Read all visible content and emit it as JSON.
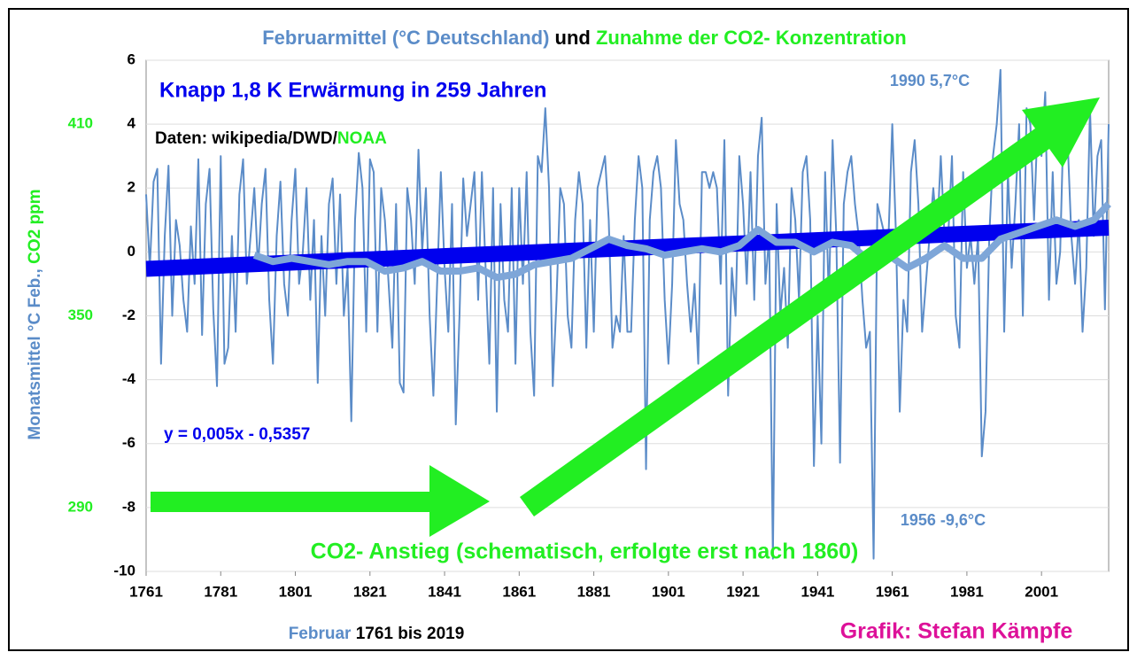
{
  "chart_data": {
    "type": "line",
    "title_parts": [
      {
        "text": "Februarmittel (°C Deutschland)",
        "color": "#5b8cc8"
      },
      {
        "text": " und ",
        "color": "#000000"
      },
      {
        "text": "Zunahme der CO2- Konzentration",
        "color": "#22ee22"
      }
    ],
    "ylabel_parts": [
      {
        "text": "Monatsmittel °C Feb., ",
        "color": "#5b8cc8"
      },
      {
        "text": "CO2 ppm",
        "color": "#22ee22"
      }
    ],
    "xlabel_parts": [
      {
        "text": "Februar ",
        "color": "#5b8cc8"
      },
      {
        "text": "1761 bis 2019",
        "color": "#000000"
      }
    ],
    "credit": "Grafik: Stefan Kämpfe",
    "annotations": {
      "headline": "Knapp 1,8 K Erwärmung in 259 Jahren",
      "source": "Daten: wikipedia/DWD/",
      "source_noaa": "NOAA",
      "equation": "y = 0,005x - 0,5357",
      "max": "1990 5,7°C",
      "min": "1956 -9,6°C",
      "co2": "CO2- Anstieg (schematisch, erfolgte erst nach 1860)"
    },
    "x": [
      1761,
      1762,
      1763,
      1764,
      1765,
      1766,
      1767,
      1768,
      1769,
      1770,
      1771,
      1772,
      1773,
      1774,
      1775,
      1776,
      1777,
      1778,
      1779,
      1780,
      1781,
      1782,
      1783,
      1784,
      1785,
      1786,
      1787,
      1788,
      1789,
      1790,
      1791,
      1792,
      1793,
      1794,
      1795,
      1796,
      1797,
      1798,
      1799,
      1800,
      1801,
      1802,
      1803,
      1804,
      1805,
      1806,
      1807,
      1808,
      1809,
      1810,
      1811,
      1812,
      1813,
      1814,
      1815,
      1816,
      1817,
      1818,
      1819,
      1820,
      1821,
      1822,
      1823,
      1824,
      1825,
      1826,
      1827,
      1828,
      1829,
      1830,
      1831,
      1832,
      1833,
      1834,
      1835,
      1836,
      1837,
      1838,
      1839,
      1840,
      1841,
      1842,
      1843,
      1844,
      1845,
      1846,
      1847,
      1848,
      1849,
      1850,
      1851,
      1852,
      1853,
      1854,
      1855,
      1856,
      1857,
      1858,
      1859,
      1860,
      1861,
      1862,
      1863,
      1864,
      1865,
      1866,
      1867,
      1868,
      1869,
      1870,
      1871,
      1872,
      1873,
      1874,
      1875,
      1876,
      1877,
      1878,
      1879,
      1880,
      1881,
      1882,
      1883,
      1884,
      1885,
      1886,
      1887,
      1888,
      1889,
      1890,
      1891,
      1892,
      1893,
      1894,
      1895,
      1896,
      1897,
      1898,
      1899,
      1900,
      1901,
      1902,
      1903,
      1904,
      1905,
      1906,
      1907,
      1908,
      1909,
      1910,
      1911,
      1912,
      1913,
      1914,
      1915,
      1916,
      1917,
      1918,
      1919,
      1920,
      1921,
      1922,
      1923,
      1924,
      1925,
      1926,
      1927,
      1928,
      1929,
      1930,
      1931,
      1932,
      1933,
      1934,
      1935,
      1936,
      1937,
      1938,
      1939,
      1940,
      1941,
      1942,
      1943,
      1944,
      1945,
      1946,
      1947,
      1948,
      1949,
      1950,
      1951,
      1952,
      1953,
      1954,
      1955,
      1956,
      1957,
      1958,
      1959,
      1960,
      1961,
      1962,
      1963,
      1964,
      1965,
      1966,
      1967,
      1968,
      1969,
      1970,
      1971,
      1972,
      1973,
      1974,
      1975,
      1976,
      1977,
      1978,
      1979,
      1980,
      1981,
      1982,
      1983,
      1984,
      1985,
      1986,
      1987,
      1988,
      1989,
      1990,
      1991,
      1992,
      1993,
      1994,
      1995,
      1996,
      1997,
      1998,
      1999,
      2000,
      2001,
      2002,
      2003,
      2004,
      2005,
      2006,
      2007,
      2008,
      2009,
      2010,
      2011,
      2012,
      2013,
      2014,
      2015,
      2016,
      2017,
      2018,
      2019
    ],
    "series": [
      {
        "color": "#5b8cc8",
        "width": 2,
        "values": [
          1.8,
          -0.5,
          2.2,
          2.6,
          -3.5,
          0.5,
          2.7,
          -2.0,
          1.0,
          0.2,
          -1.5,
          -2.5,
          0.8,
          -1.0,
          2.9,
          -2.6,
          1.5,
          2.6,
          -1.8,
          -4.2,
          3.0,
          -3.5,
          -3.0,
          0.5,
          -2.5,
          1.8,
          2.9,
          -1.0,
          0.5,
          2.0,
          -0.5,
          1.5,
          2.6,
          -1.5,
          -3.5,
          0.5,
          2.2,
          -1.0,
          -2.0,
          1.0,
          2.6,
          -1.0,
          0.0,
          2.0,
          -1.5,
          1.0,
          -4.1,
          0.5,
          -2.0,
          1.5,
          2.3,
          -1.0,
          1.8,
          -2.0,
          -0.5,
          -5.3,
          1.0,
          3.1,
          2.0,
          -2.5,
          2.9,
          2.5,
          -2.5,
          2.0,
          1.0,
          -1.0,
          -3.0,
          1.5,
          -4.1,
          -4.4,
          2.0,
          1.0,
          -1.0,
          3.2,
          0.0,
          2.0,
          -2.0,
          -4.5,
          -1.0,
          2.5,
          -0.5,
          -2.5,
          1.5,
          -5.4,
          -2.0,
          2.3,
          0.5,
          1.5,
          2.5,
          -1.5,
          2.5,
          -0.5,
          -3.5,
          2.0,
          -5.0,
          1.5,
          -1.5,
          -2.5,
          2.0,
          -3.5,
          2.0,
          -1.0,
          2.5,
          -2.5,
          -4.5,
          3.0,
          2.5,
          4.5,
          2.0,
          -4.2,
          -1.5,
          2.0,
          1.5,
          -2.0,
          -3.0,
          1.0,
          2.5,
          1.5,
          -3.0,
          1.0,
          -2.5,
          2.0,
          2.5,
          3.0,
          1.0,
          -3.0,
          -2.0,
          -2.5,
          0.5,
          -2.5,
          -2.5,
          1.0,
          3.0,
          2.0,
          -6.8,
          1.0,
          2.5,
          3.0,
          2.0,
          -1.5,
          -3.5,
          -1.0,
          3.5,
          1.5,
          1.0,
          -1.0,
          -2.5,
          -1.0,
          -3.5,
          2.5,
          2.5,
          2.0,
          2.5,
          2.0,
          -1.0,
          3.5,
          -4.5,
          -0.5,
          -2.0,
          3.0,
          1.5,
          -1.0,
          2.5,
          -1.5,
          3.0,
          4.2,
          -1.0,
          0.5,
          -9.6,
          1.5,
          -2.0,
          -0.5,
          -3.0,
          2.0,
          1.0,
          -1.5,
          2.5,
          3.0,
          1.0,
          -6.7,
          -2.0,
          -6.0,
          2.5,
          -1.5,
          3.5,
          0.5,
          -6.6,
          1.5,
          2.5,
          3.0,
          1.5,
          0.5,
          -1.5,
          -3.0,
          -2.5,
          -9.6,
          1.5,
          1.0,
          0.5,
          0.5,
          4.0,
          0.5,
          -5.0,
          -1.5,
          -2.5,
          2.5,
          3.5,
          1.5,
          -2.5,
          -1.0,
          0.5,
          2.0,
          0.5,
          3.0,
          0.5,
          0.5,
          3.0,
          -2.0,
          -3.0,
          2.5,
          -0.5,
          0.5,
          -1.0,
          0.5,
          -6.4,
          -5.0,
          0.5,
          3.0,
          4.0,
          5.7,
          -2.5,
          2.5,
          -0.5,
          1.5,
          4.0,
          -2.0,
          4.5,
          4.0,
          1.0,
          4.2,
          3.0,
          5.0,
          -1.5,
          2.5,
          -1.0,
          0.0,
          4.5,
          3.5,
          0.5,
          -1.0,
          1.0,
          -2.5,
          -0.5,
          4.5,
          0.5,
          3.0,
          3.5,
          -1.8,
          4.0
        ]
      },
      {
        "color": "#0000ee",
        "width": 18,
        "x": [
          1761,
          2019
        ],
        "values": [
          -0.53,
          0.76
        ]
      },
      {
        "color": "#7ea6d8",
        "width": 8,
        "x": [
          1790,
          1795,
          1800,
          1805,
          1810,
          1815,
          1820,
          1825,
          1830,
          1835,
          1840,
          1845,
          1850,
          1855,
          1860,
          1865,
          1870,
          1875,
          1880,
          1885,
          1890,
          1895,
          1900,
          1905,
          1910,
          1915,
          1920,
          1925,
          1930,
          1935,
          1940,
          1945,
          1950,
          1955,
          1960,
          1965,
          1970,
          1975,
          1980,
          1985,
          1990,
          1995,
          2000,
          2005,
          2010,
          2015,
          2019
        ],
        "values": [
          -0.1,
          -0.3,
          -0.2,
          -0.3,
          -0.4,
          -0.3,
          -0.3,
          -0.6,
          -0.5,
          -0.3,
          -0.6,
          -0.6,
          -0.5,
          -0.8,
          -0.7,
          -0.4,
          -0.3,
          -0.2,
          0.1,
          0.4,
          0.2,
          0.1,
          -0.1,
          0.0,
          0.1,
          0.0,
          0.2,
          0.7,
          0.3,
          0.3,
          0.0,
          0.3,
          0.2,
          -0.3,
          -0.1,
          -0.5,
          -0.2,
          0.2,
          -0.2,
          -0.2,
          0.4,
          0.6,
          0.8,
          1.0,
          0.8,
          1.0,
          1.5
        ]
      }
    ],
    "xlim": [
      1761,
      2019
    ],
    "xticks": [
      1761,
      1781,
      1801,
      1821,
      1841,
      1861,
      1881,
      1901,
      1921,
      1941,
      1961,
      1981,
      2001
    ],
    "ylim": [
      -10,
      6
    ],
    "yticks": [
      -10,
      -8,
      -6,
      -4,
      -2,
      0,
      2,
      4,
      6
    ],
    "y2lim": [
      270,
      430
    ],
    "y2ticks": [
      290,
      350,
      410
    ],
    "y2color": "#22ee22",
    "grid": true
  }
}
